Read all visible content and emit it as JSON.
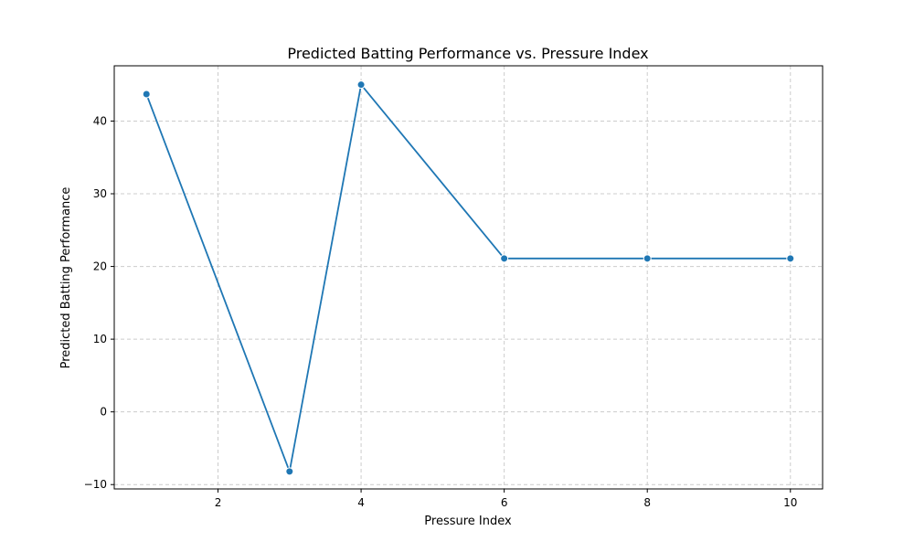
{
  "chart_data": {
    "type": "line",
    "title": "Predicted Batting Performance vs. Pressure Index",
    "xlabel": "Pressure Index",
    "ylabel": "Predicted Batting Performance",
    "x": [
      1,
      3,
      4,
      6,
      8,
      10
    ],
    "series": [
      {
        "values": [
          43.7,
          -8.2,
          45.0,
          21.1,
          21.1,
          21.1
        ],
        "color": "#1f77b4",
        "marker": "circle"
      }
    ],
    "xlim": [
      0.55,
      10.45
    ],
    "ylim": [
      -10.6,
      47.6
    ],
    "xticks": [
      2,
      4,
      6,
      8,
      10
    ],
    "yticks": [
      -10,
      0,
      10,
      20,
      30,
      40
    ],
    "ytick_labels": [
      "−10",
      "0",
      "10",
      "20",
      "30",
      "40"
    ],
    "grid": true,
    "grid_style": "dashed",
    "grid_color": "#cccccc",
    "legend": "none"
  }
}
